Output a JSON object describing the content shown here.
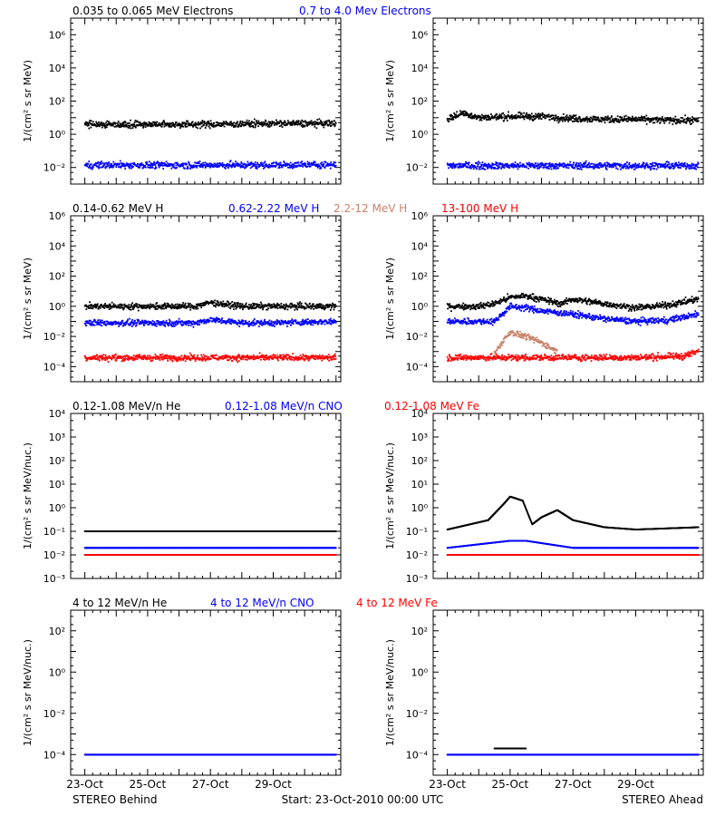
{
  "chart_data": [
    {
      "type": "scatter",
      "panel": "behind-electrons",
      "legend": [
        {
          "name": "0.035 to 0.065 MeV Electrons",
          "color": "#000000"
        },
        {
          "name": "0.7 to 4.0 Mev Electrons",
          "color": "#0000ff"
        }
      ],
      "ylabel": "1/(cm² s sr MeV)",
      "ylog": true,
      "ytick_labels": [
        "10⁶",
        "10⁴",
        "10²",
        "10⁰",
        "10⁻²"
      ],
      "series": [
        {
          "name": "0.035 to 0.065 MeV Electrons",
          "color": "#000000",
          "x": [
            23,
            25,
            27,
            29,
            31
          ],
          "y": [
            4,
            4,
            4,
            4.5,
            4.5
          ]
        },
        {
          "name": "0.7 to 4.0 Mev Electrons",
          "color": "#0000ff",
          "x": [
            23,
            25,
            27,
            29,
            31
          ],
          "y": [
            0.014,
            0.014,
            0.014,
            0.014,
            0.015
          ]
        }
      ]
    },
    {
      "type": "scatter",
      "panel": "ahead-electrons",
      "ylabel": "1/(cm² s sr MeV)",
      "ylog": true,
      "ytick_labels": [
        "10⁶",
        "10⁴",
        "10²",
        "10⁰",
        "10⁻²"
      ],
      "series": [
        {
          "name": "0.035 to 0.065 MeV Electrons",
          "color": "#000000",
          "x": [
            23,
            23.5,
            24,
            25,
            26,
            27,
            28,
            29,
            30,
            31
          ],
          "y": [
            8,
            20,
            10,
            12,
            12,
            9,
            8,
            8,
            7,
            7
          ]
        },
        {
          "name": "0.7 to 4.0 Mev Electrons",
          "color": "#0000ff",
          "x": [
            23,
            25,
            27,
            29,
            31
          ],
          "y": [
            0.013,
            0.013,
            0.013,
            0.013,
            0.013
          ]
        }
      ]
    },
    {
      "type": "scatter",
      "panel": "behind-protons",
      "legend": [
        {
          "name": "0.14-0.62 MeV H",
          "color": "#000000"
        },
        {
          "name": "0.62-2.22 MeV H",
          "color": "#0000ff"
        },
        {
          "name": "2.2-12 MeV H",
          "color": "#c8826a"
        },
        {
          "name": "13-100 MeV H",
          "color": "#ff0000"
        }
      ],
      "ylabel": "1/(cm² s sr MeV)",
      "ylog": true,
      "ytick_labels": [
        "10⁶",
        "10⁴",
        "10²",
        "10⁰",
        "10⁻²",
        "10⁻⁴"
      ],
      "series": [
        {
          "name": "0.14-0.62 MeV H",
          "color": "#000000",
          "x": [
            23,
            25,
            26.5,
            27,
            28,
            29,
            31
          ],
          "y": [
            1,
            1,
            1,
            1.8,
            1,
            1,
            1
          ]
        },
        {
          "name": "0.62-2.22 MeV H",
          "color": "#0000ff",
          "x": [
            23,
            25,
            26.5,
            27,
            28,
            29,
            31
          ],
          "y": [
            0.08,
            0.08,
            0.08,
            0.13,
            0.08,
            0.08,
            0.1
          ]
        },
        {
          "name": "13-100 MeV H",
          "color": "#ff0000",
          "x": [
            23,
            25,
            27,
            29,
            31
          ],
          "y": [
            0.0004,
            0.0004,
            0.0004,
            0.0004,
            0.0004
          ]
        }
      ]
    },
    {
      "type": "scatter",
      "panel": "ahead-protons",
      "ylabel": "1/(cm² s sr MeV)",
      "ylog": true,
      "ytick_labels": [
        "10⁶",
        "10⁴",
        "10²",
        "10⁰",
        "10⁻²",
        "10⁻⁴"
      ],
      "series": [
        {
          "name": "0.14-0.62 MeV H",
          "color": "#000000",
          "x": [
            23,
            24,
            24.5,
            25,
            25.5,
            26,
            26.6,
            27,
            28,
            29,
            30,
            31
          ],
          "y": [
            1,
            1,
            1.5,
            4,
            5,
            3,
            1.5,
            3,
            1.5,
            0.8,
            1.2,
            3
          ]
        },
        {
          "name": "0.62-2.22 MeV H",
          "color": "#0000ff",
          "x": [
            23,
            24,
            24.5,
            25,
            25.5,
            26,
            27,
            28,
            29,
            30,
            31
          ],
          "y": [
            0.1,
            0.1,
            0.1,
            1,
            0.8,
            0.5,
            0.3,
            0.15,
            0.1,
            0.12,
            0.3
          ]
        },
        {
          "name": "2.2-12 MeV H",
          "color": "#c8826a",
          "x": [
            24.5,
            24.8,
            25,
            25.5,
            26,
            26.5
          ],
          "y": [
            0.0008,
            0.006,
            0.02,
            0.01,
            0.004,
            0.001
          ]
        },
        {
          "name": "13-100 MeV H",
          "color": "#ff0000",
          "x": [
            23,
            25,
            27,
            29,
            30.5,
            31
          ],
          "y": [
            0.0004,
            0.0004,
            0.0004,
            0.0004,
            0.0005,
            0.001
          ]
        }
      ]
    },
    {
      "type": "scatter",
      "panel": "behind-heavy-low",
      "legend": [
        {
          "name": "0.12-1.08 MeV/n He",
          "color": "#000000"
        },
        {
          "name": "0.12-1.08 MeV/n CNO",
          "color": "#0000ff"
        },
        {
          "name": "0.12-1.08 MeV Fe",
          "color": "#ff0000"
        }
      ],
      "ylabel": "1/(cm² s sr MeV/nuc.)",
      "ylog": true,
      "ytick_labels": [
        "10⁴",
        "10³",
        "10²",
        "10¹",
        "10⁰",
        "10⁻¹",
        "10⁻²",
        "10⁻³"
      ],
      "series": [
        {
          "name": "0.12-1.08 MeV/n He",
          "color": "#000000",
          "x": [
            23,
            25,
            27,
            29,
            31
          ],
          "y": [
            0.1,
            0.1,
            0.1,
            0.1,
            0.1
          ]
        },
        {
          "name": "0.12-1.08 MeV/n CNO",
          "color": "#0000ff",
          "x": [
            23,
            25,
            27,
            29,
            31
          ],
          "y": [
            0.02,
            0.02,
            0.02,
            0.02,
            0.02
          ]
        },
        {
          "name": "0.12-1.08 MeV Fe",
          "color": "#ff0000",
          "x": [
            23,
            25,
            27,
            29,
            31
          ],
          "y": [
            0.01,
            0.01,
            0.01,
            0.01,
            0.01
          ]
        }
      ]
    },
    {
      "type": "scatter",
      "panel": "ahead-heavy-low",
      "ylabel": "1/(cm² s sr MeV/nuc.)",
      "ylog": true,
      "ytick_labels": [
        "10⁴",
        "10³",
        "10²",
        "10¹",
        "10⁰",
        "10⁻¹",
        "10⁻²",
        "10⁻³"
      ],
      "series": [
        {
          "name": "0.12-1.08 MeV/n He",
          "color": "#000000",
          "x": [
            23,
            24.3,
            24.8,
            25,
            25.4,
            25.7,
            26,
            26.5,
            27,
            28,
            29,
            31
          ],
          "y": [
            0.12,
            0.3,
            1.5,
            3,
            2,
            0.2,
            0.4,
            0.8,
            0.3,
            0.15,
            0.12,
            0.15
          ]
        },
        {
          "name": "0.12-1.08 MeV/n CNO",
          "color": "#0000ff",
          "x": [
            23,
            25,
            25.5,
            27,
            29,
            31
          ],
          "y": [
            0.02,
            0.04,
            0.04,
            0.02,
            0.02,
            0.02
          ]
        },
        {
          "name": "0.12-1.08 MeV Fe",
          "color": "#ff0000",
          "x": [
            23,
            25,
            27,
            29,
            31
          ],
          "y": [
            0.01,
            0.01,
            0.01,
            0.01,
            0.01
          ]
        }
      ]
    },
    {
      "type": "scatter",
      "panel": "behind-heavy-high",
      "legend": [
        {
          "name": "4 to 12 MeV/n He",
          "color": "#000000"
        },
        {
          "name": "4 to 12 MeV/n CNO",
          "color": "#0000ff"
        },
        {
          "name": "4 to 12 MeV Fe",
          "color": "#ff0000"
        }
      ],
      "ylabel": "1/(cm² s sr MeV/nuc.)",
      "ylog": true,
      "ytick_labels": [
        "10²",
        "10⁰",
        "10⁻²",
        "10⁻⁴"
      ],
      "series": [
        {
          "name": "4 to 12 MeV/n CNO",
          "color": "#0000ff",
          "x": [
            23,
            25,
            27,
            29,
            31
          ],
          "y": [
            0.0001,
            0.0001,
            0.0001,
            0.0001,
            0.0001
          ]
        }
      ]
    },
    {
      "type": "scatter",
      "panel": "ahead-heavy-high",
      "ylabel": "1/(cm² s sr MeV/nuc.)",
      "ylog": true,
      "ytick_labels": [
        "10²",
        "10⁰",
        "10⁻²",
        "10⁻⁴"
      ],
      "series": [
        {
          "name": "4 to 12 MeV/n He",
          "color": "#000000",
          "x": [
            24.5,
            25,
            25.5
          ],
          "y": [
            0.0002,
            0.0002,
            0.0002
          ]
        },
        {
          "name": "4 to 12 MeV/n CNO",
          "color": "#0000ff",
          "x": [
            23,
            25,
            27,
            29,
            31
          ],
          "y": [
            0.0001,
            0.0001,
            0.0001,
            0.0001,
            0.0001
          ]
        }
      ]
    }
  ],
  "x_tick_labels": [
    "23-Oct",
    "25-Oct",
    "27-Oct",
    "29-Oct"
  ],
  "footer": {
    "left": "STEREO Behind",
    "center": "Start: 23-Oct-2010 00:00 UTC",
    "right": "STEREO Ahead"
  }
}
